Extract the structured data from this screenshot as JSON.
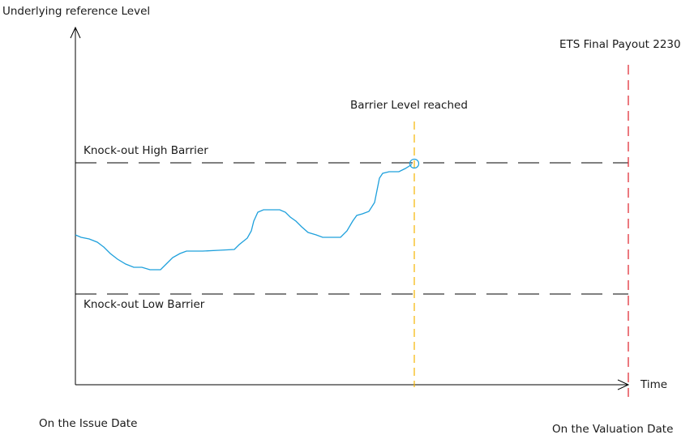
{
  "labels": {
    "y_axis": "Underlying reference Level",
    "x_axis": "Time",
    "issue_date": "On the Issue Date",
    "valuation_date": "On the Valuation Date",
    "high_barrier": "Knock-out High Barrier",
    "low_barrier": "Knock-out Low Barrier",
    "barrier_reached": "Barrier Level reached",
    "final_payout": "ETS Final Payout 2230"
  },
  "colors": {
    "axis": "#000000",
    "barrier_line": "#000000",
    "price_path": "#1ea0dc",
    "barrier_reached_line": "#f5b400",
    "final_payout_line": "#e0202a"
  }
}
